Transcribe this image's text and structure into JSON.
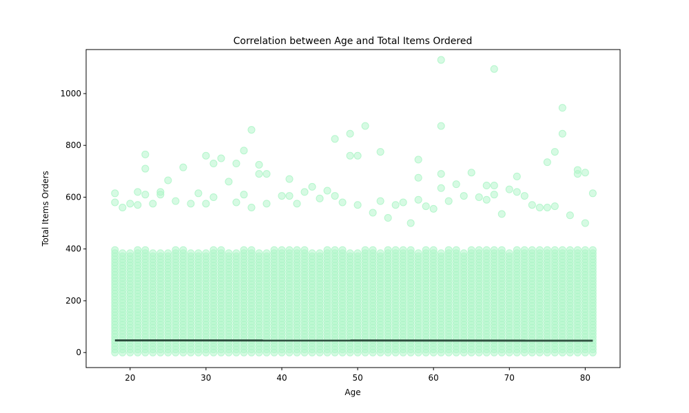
{
  "chart_data": {
    "type": "scatter",
    "title": "Correlation between Age and Total Items Ordered",
    "xlabel": "Age",
    "ylabel": "Total Items Orders",
    "xlim": [
      14.2,
      84.6
    ],
    "ylim": [
      -58,
      1170
    ],
    "xticks": [
      20,
      30,
      40,
      50,
      60,
      70,
      80
    ],
    "yticks": [
      0,
      200,
      400,
      600,
      800,
      1000
    ],
    "grid": false,
    "point_color": "#aef5c8",
    "trend_color": "#2f4f3f",
    "series": [
      {
        "kind": "scatter",
        "ages_range": [
          18,
          81
        ],
        "dense_max_by_age": [
          400,
          390,
          395,
          400,
          400,
          395,
          390,
          395,
          400,
          400,
          395,
          390,
          395,
          400,
          400,
          395,
          395,
          400,
          400,
          395,
          395,
          400,
          400,
          400,
          400,
          400,
          395,
          395,
          400,
          400,
          400,
          395,
          395,
          400,
          400,
          395,
          400,
          400,
          400,
          400,
          395,
          400,
          400,
          395,
          400,
          400,
          395,
          400,
          400,
          400,
          400,
          400,
          395,
          400,
          400,
          400,
          400,
          400,
          400,
          400,
          400,
          400,
          400,
          400
        ],
        "outliers": [
          [
            18,
            615
          ],
          [
            18,
            580
          ],
          [
            19,
            560
          ],
          [
            20,
            575
          ],
          [
            21,
            620
          ],
          [
            21,
            570
          ],
          [
            22,
            765
          ],
          [
            22,
            710
          ],
          [
            22,
            610
          ],
          [
            23,
            575
          ],
          [
            24,
            620
          ],
          [
            24,
            610
          ],
          [
            25,
            665
          ],
          [
            26,
            585
          ],
          [
            27,
            715
          ],
          [
            28,
            575
          ],
          [
            29,
            615
          ],
          [
            30,
            760
          ],
          [
            30,
            575
          ],
          [
            31,
            730
          ],
          [
            31,
            600
          ],
          [
            32,
            750
          ],
          [
            33,
            660
          ],
          [
            34,
            730
          ],
          [
            34,
            580
          ],
          [
            35,
            780
          ],
          [
            35,
            610
          ],
          [
            36,
            860
          ],
          [
            36,
            560
          ],
          [
            37,
            725
          ],
          [
            37,
            690
          ],
          [
            38,
            690
          ],
          [
            38,
            575
          ],
          [
            40,
            605
          ],
          [
            41,
            670
          ],
          [
            41,
            605
          ],
          [
            42,
            575
          ],
          [
            43,
            620
          ],
          [
            44,
            640
          ],
          [
            45,
            595
          ],
          [
            46,
            625
          ],
          [
            47,
            825
          ],
          [
            47,
            605
          ],
          [
            48,
            580
          ],
          [
            49,
            845
          ],
          [
            49,
            760
          ],
          [
            50,
            760
          ],
          [
            50,
            570
          ],
          [
            51,
            875
          ],
          [
            52,
            540
          ],
          [
            53,
            775
          ],
          [
            53,
            585
          ],
          [
            54,
            520
          ],
          [
            55,
            570
          ],
          [
            56,
            580
          ],
          [
            57,
            500
          ],
          [
            58,
            745
          ],
          [
            58,
            675
          ],
          [
            58,
            590
          ],
          [
            59,
            565
          ],
          [
            60,
            555
          ],
          [
            61,
            1130
          ],
          [
            61,
            875
          ],
          [
            61,
            690
          ],
          [
            61,
            635
          ],
          [
            62,
            585
          ],
          [
            63,
            650
          ],
          [
            64,
            605
          ],
          [
            65,
            695
          ],
          [
            66,
            600
          ],
          [
            67,
            645
          ],
          [
            67,
            590
          ],
          [
            68,
            1095
          ],
          [
            68,
            645
          ],
          [
            68,
            610
          ],
          [
            69,
            535
          ],
          [
            70,
            630
          ],
          [
            71,
            680
          ],
          [
            71,
            620
          ],
          [
            72,
            605
          ],
          [
            73,
            570
          ],
          [
            74,
            560
          ],
          [
            75,
            735
          ],
          [
            75,
            560
          ],
          [
            76,
            775
          ],
          [
            76,
            565
          ],
          [
            77,
            945
          ],
          [
            77,
            845
          ],
          [
            78,
            530
          ],
          [
            79,
            705
          ],
          [
            79,
            690
          ],
          [
            80,
            695
          ],
          [
            80,
            500
          ],
          [
            81,
            615
          ]
        ]
      },
      {
        "kind": "trend",
        "x": [
          18,
          81
        ],
        "y": [
          47,
          46
        ]
      }
    ]
  }
}
